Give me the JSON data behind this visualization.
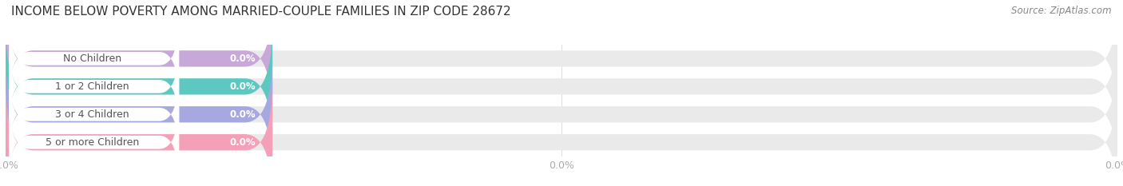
{
  "title": "INCOME BELOW POVERTY AMONG MARRIED-COUPLE FAMILIES IN ZIP CODE 28672",
  "source": "Source: ZipAtlas.com",
  "categories": [
    "No Children",
    "1 or 2 Children",
    "3 or 4 Children",
    "5 or more Children"
  ],
  "values": [
    0.0,
    0.0,
    0.0,
    0.0
  ],
  "bar_colors": [
    "#c8a8d8",
    "#5dc8c0",
    "#a8a8e0",
    "#f4a0b8"
  ],
  "bar_bg_color": "#eaeaea",
  "white_inner": "#ffffff",
  "background_color": "#ffffff",
  "label_color": "#aaaaaa",
  "title_fontsize": 11,
  "source_fontsize": 8.5,
  "tick_fontsize": 9,
  "bar_label_fontsize": 8.5,
  "category_fontsize": 9,
  "grid_color": "#dddddd",
  "text_color": "#555555",
  "value_text_color": "#ffffff"
}
